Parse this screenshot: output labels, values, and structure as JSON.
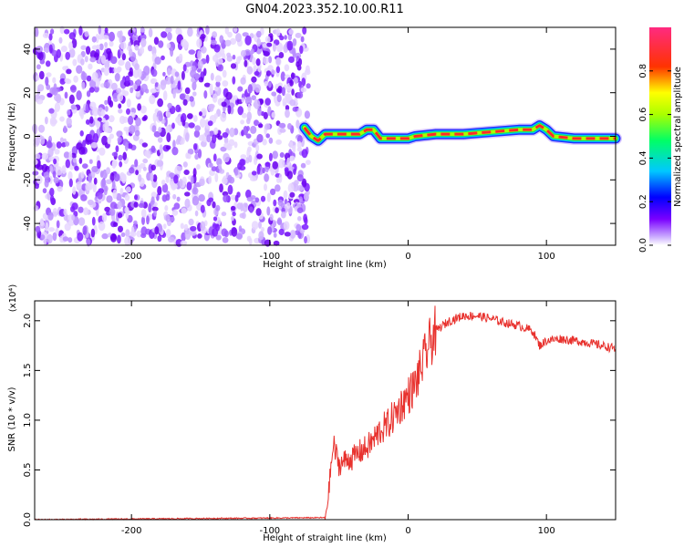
{
  "figure_title": "GN04.2023.352.10.00.R11",
  "chart_data": [
    {
      "type": "heatmap",
      "xlabel": "Height of straight line (km)",
      "ylabel": "Frequency (Hz)",
      "xlim": [
        -270,
        150
      ],
      "ylim": [
        -50,
        50
      ],
      "xticks": [
        -200,
        -100,
        0,
        100
      ],
      "xtick_labels": [
        "-200",
        "-100",
        "0",
        "100"
      ],
      "yticks": [
        -40,
        -20,
        0,
        20,
        40
      ],
      "ytick_labels": [
        "-40",
        "-20",
        "0",
        "20",
        "40"
      ],
      "noise_region_x": [
        -270,
        -72
      ],
      "signal_track": {
        "description_x": [
          -75,
          -70,
          -65,
          -60,
          -35,
          -30,
          -25,
          -20,
          -5,
          0,
          5,
          20,
          40,
          60,
          80,
          90,
          95,
          100,
          105,
          120,
          150
        ],
        "frequency_hz": [
          4,
          0,
          -2,
          1,
          1,
          3,
          3,
          -1,
          -1,
          -1,
          0,
          1,
          1,
          2,
          3,
          3,
          5,
          3,
          0,
          -1,
          -1
        ]
      },
      "colorbar": {
        "label": "Normalized spectral amplitude",
        "range": [
          0.0,
          1.0
        ],
        "ticks": [
          0.0,
          0.2,
          0.4,
          0.6,
          0.8
        ],
        "tick_labels": [
          "0.0",
          "0.2",
          "0.4",
          "0.6",
          "0.8"
        ]
      },
      "grid": false
    },
    {
      "type": "line",
      "xlabel": "Height of straight line (km)",
      "ylabel": "SNR (10 * v/v)",
      "y_multiplier": "(x10⁴)",
      "xlim": [
        -270,
        150
      ],
      "ylim": [
        0,
        2.2
      ],
      "xticks": [
        -200,
        -100,
        0,
        100
      ],
      "xtick_labels": [
        "-200",
        "-100",
        "0",
        "100"
      ],
      "yticks": [
        0.0,
        0.5,
        1.0,
        1.5,
        2.0
      ],
      "ytick_labels": [
        "0.0",
        "0.5",
        "1.0",
        "1.5",
        "2.0"
      ],
      "series": [
        {
          "color": "#e8322e",
          "x": [
            -270,
            -60,
            -58,
            -56,
            -54,
            -52,
            -50,
            -45,
            -40,
            -35,
            -30,
            -25,
            -20,
            -15,
            -10,
            -5,
            0,
            5,
            10,
            15,
            20,
            30,
            40,
            50,
            60,
            70,
            80,
            90,
            95,
            100,
            110,
            120,
            130,
            140,
            150
          ],
          "y": [
            0.0,
            0.02,
            0.2,
            0.5,
            0.75,
            0.65,
            0.55,
            0.6,
            0.62,
            0.68,
            0.72,
            0.8,
            0.9,
            0.95,
            1.05,
            1.15,
            1.25,
            1.35,
            1.55,
            1.75,
            1.9,
            2.0,
            2.05,
            2.05,
            2.02,
            1.98,
            1.95,
            1.9,
            1.75,
            1.8,
            1.82,
            1.8,
            1.78,
            1.75,
            1.72
          ]
        }
      ],
      "grid": false
    }
  ]
}
